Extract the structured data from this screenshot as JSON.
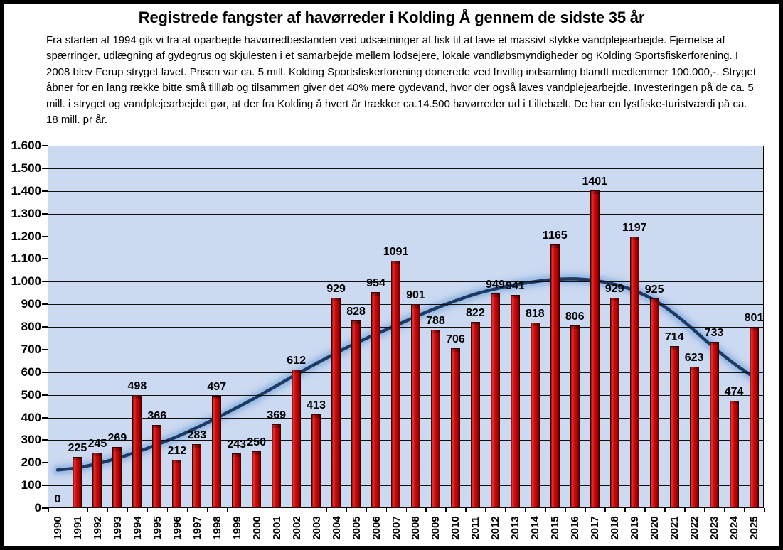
{
  "chart_data": {
    "type": "bar",
    "title": "Registrede fangster af havørreder i Kolding Å gennem de sidste 35 år",
    "description": "Fra starten af 1994 gik vi fra at oparbejde havørredbestanden ved udsætninger af fisk til at lave et massivt stykke vandplejearbejde. Fjernelse af spærringer, udlægning af gydegrus og skjulesten i et samarbejde mellem lodsejere, lokale vandløbsmyndigheder og Kolding Sportsfiskerforening. I 2008 blev Ferup stryget lavet. Prisen var ca. 5 mill. Kolding Sportsfiskerforening donerede ved frivillig indsamling blandt medlemmer 100.000,-. Stryget åbner for en lang række bitte små tillløb og tilsammen giver det 40% mere gydevand, hvor der også laves vandplejearbejde. Investeringen på de ca. 5 mill. i stryget og vandplejearbejdet gør, at der fra Kolding å hvert år trækker ca.14.500 havørreder ud i Lillebælt. De har en lystfiske-turistværdi på ca. 18 mill. pr år.",
    "categories": [
      "1990",
      "1991",
      "1992",
      "1993",
      "1994",
      "1995",
      "1996",
      "1997",
      "1998",
      "1999",
      "2000",
      "2001",
      "2002",
      "2003",
      "2004",
      "2005",
      "2006",
      "2007",
      "2008",
      "2009",
      "2010",
      "2011",
      "2012",
      "2013",
      "2014",
      "2015",
      "2016",
      "2017",
      "2018",
      "2019",
      "2020",
      "2021",
      "2022",
      "2023",
      "2024",
      "2025"
    ],
    "values": [
      0,
      225,
      245,
      269,
      498,
      366,
      212,
      283,
      497,
      243,
      250,
      369,
      612,
      413,
      929,
      828,
      954,
      1091,
      901,
      788,
      706,
      822,
      949,
      941,
      818,
      1165,
      806,
      1401,
      929,
      1197,
      925,
      714,
      623,
      733,
      474,
      801
    ],
    "trend_values": [
      168,
      178,
      196,
      220,
      248,
      280,
      315,
      355,
      398,
      443,
      490,
      540,
      590,
      638,
      685,
      728,
      768,
      806,
      845,
      882,
      915,
      945,
      968,
      986,
      1000,
      1010,
      1012,
      1005,
      988,
      960,
      918,
      858,
      785,
      708,
      638,
      578
    ],
    "xlabel": "",
    "ylabel": "",
    "ylim": [
      0,
      1600
    ],
    "ytick_step": 100,
    "ytick_labels": [
      "1.600",
      "1.500",
      "1.400",
      "1.300",
      "1.200",
      "1.100",
      "1.000",
      "900",
      "800",
      "700",
      "600",
      "500",
      "400",
      "300",
      "200",
      "100",
      "0"
    ],
    "grid": "horizontal",
    "legend": "none",
    "colors": {
      "bar": "#c00000",
      "bar_highlight": "#dc3a3a",
      "bar_shadow": "#6e0000",
      "trend_line": "#1d3a63",
      "trend_glow": "#8db4e2",
      "plot_background": "#cbd9f1",
      "gridline": "#101010",
      "frame_border": "#000000",
      "background": "#ffffff"
    }
  }
}
